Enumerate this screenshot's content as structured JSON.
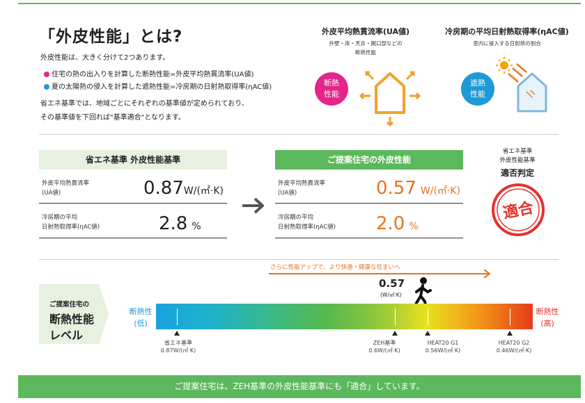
{
  "title": "「外皮性能」とは?",
  "lead": "外皮性能は、大きく分けて2つあります。",
  "bullets": [
    {
      "text": "住宅の熱の出入りを計算した断熱性能=外皮平均熱貫流率(UA値)",
      "color": "#e5258c"
    },
    {
      "text": "夏の太陽熱の侵入を計算した遮熱性能=冷房期の日射熱取得率(ηAC値)",
      "color": "#1e9ad6"
    }
  ],
  "note_lines": [
    "省エネ基準では、地域ごとにそれぞれの基準値が定められており、",
    "その基準値を下回れば\"基準適合\"となります。"
  ],
  "icons": {
    "insulation": {
      "heading": "外皮平均熱貫流率(UA値)",
      "sub1": "外壁・床・天井・開口部などの",
      "sub2": "断熱性能",
      "circle1": "断熱",
      "circle2": "性能",
      "color": "#e5258c"
    },
    "shading": {
      "heading": "冷房期の平均日射熱取得率(ηAC値)",
      "sub": "室内に侵入する日射熱の割合",
      "circle1": "遮熱",
      "circle2": "性能",
      "color": "#1e9ad6"
    }
  },
  "standard": {
    "header": "省エネ基準 外皮性能基準",
    "rows": [
      {
        "label1": "外皮平均熱貫流率",
        "label2": "(UA値)",
        "value": "0.87",
        "unit": "W/(㎡·K)"
      },
      {
        "label1": "冷房期の平均",
        "label2": "日射熱取得率(ηAC値)",
        "value": "2.8",
        "unit": "%"
      }
    ]
  },
  "proposal": {
    "header": "ご提案住宅の外皮性能",
    "rows": [
      {
        "label1": "外皮平均熱貫流率",
        "label2": "(UA値)",
        "value": "0.57",
        "unit": "W/(㎡·K)"
      },
      {
        "label1": "冷房期の平均",
        "label2": "日射熱取得率(ηAC値)",
        "value": "2.0",
        "unit": "%"
      }
    ]
  },
  "judgement": {
    "line1": "省エネ基準",
    "line2": "外皮性能基準",
    "title": "適否判定",
    "stamp": "適合"
  },
  "level": {
    "pill_small": "ご提案住宅の",
    "pill_big1": "断熱性能",
    "pill_big2": "レベル",
    "arrow_text": "さらに性能アップで、より快適・健康な住まいへ",
    "current_value": "0.57",
    "current_unit": "(W/㎡·K)",
    "left_label1": "断熱性",
    "left_label2": "(低)",
    "right_label1": "断熱性",
    "right_label2": "(高)",
    "markers": [
      {
        "name": "省エネ基準",
        "value": "0.87W/(㎡·K)"
      },
      {
        "name": "ZEH基準",
        "value": "0.6W/(㎡·K)"
      },
      {
        "name": "HEAT20 G1",
        "value": "0.56W/(㎡·K)"
      },
      {
        "name": "HEAT20 G2",
        "value": "0.46W/(㎡·K)"
      }
    ]
  },
  "footer": "ご提案住宅は、ZEH基準の外皮性能基準にも「適合」しています。",
  "colors": {
    "green": "#5cb85c",
    "orange": "#e8731e",
    "red": "#e5322d",
    "blue": "#1e9ad6"
  }
}
